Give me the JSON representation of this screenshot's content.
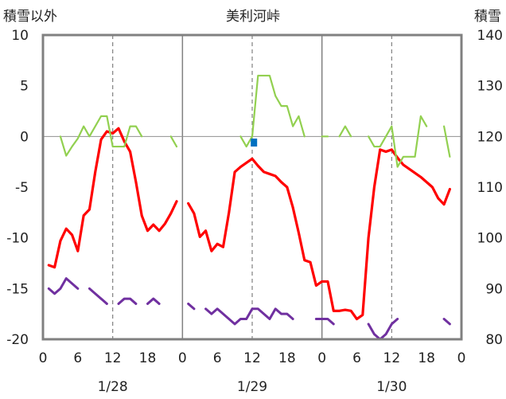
{
  "chart_data": {
    "type": "line",
    "title": "美利河峠",
    "left_axis_label": "積雪以外",
    "right_axis_label": "積雪",
    "left_ylim": [
      -20,
      10
    ],
    "left_yticks": [
      "10",
      "5",
      "0",
      "-5",
      "-10",
      "-15",
      "-20"
    ],
    "right_ylim": [
      80,
      140
    ],
    "right_yticks": [
      "140",
      "130",
      "120",
      "110",
      "100",
      "90",
      "80"
    ],
    "xlim_hours": [
      0,
      72
    ],
    "x_tick_labels": [
      "0",
      "6",
      "12",
      "18",
      "0",
      "6",
      "12",
      "18",
      "0",
      "6",
      "12",
      "18",
      "0"
    ],
    "date_labels": [
      "1/28",
      "1/29",
      "1/30"
    ],
    "grid": "vertical dashed at 12h; solid separators at day boundaries",
    "colors": {
      "red": "#ff0000",
      "green": "#92d050",
      "purple": "#7030a0",
      "blue": "#0070c0",
      "frame": "#808080"
    },
    "series": [
      {
        "axis": "left",
        "color": "#ff0000",
        "points": [
          [
            1,
            -12.7
          ],
          [
            2,
            -12.9
          ],
          [
            3,
            -10.3
          ],
          [
            4,
            -9.1
          ],
          [
            5,
            -9.7
          ],
          [
            6,
            -11.3
          ],
          [
            7,
            -7.8
          ],
          [
            8,
            -7.2
          ],
          [
            9,
            -3.5
          ],
          [
            10,
            -0.3
          ],
          [
            11,
            0.5
          ],
          [
            12,
            0.3
          ],
          [
            13,
            0.8
          ],
          [
            14,
            -0.5
          ],
          [
            15,
            -1.5
          ],
          [
            16,
            -4.5
          ],
          [
            17,
            -7.8
          ],
          [
            18,
            -9.3
          ],
          [
            19,
            -8.7
          ],
          [
            20,
            -9.3
          ],
          [
            21,
            -8.6
          ],
          [
            22,
            -7.6
          ],
          [
            23,
            -6.4
          ],
          [
            25,
            -6.6
          ],
          [
            26,
            -7.6
          ],
          [
            27,
            -9.9
          ],
          [
            28,
            -9.3
          ],
          [
            29,
            -11.3
          ],
          [
            30,
            -10.6
          ],
          [
            31,
            -10.9
          ],
          [
            32,
            -7.5
          ],
          [
            33,
            -3.5
          ],
          [
            34,
            -3.0
          ],
          [
            35,
            -2.6
          ],
          [
            36,
            -2.2
          ],
          [
            37,
            -2.9
          ],
          [
            38,
            -3.5
          ],
          [
            39,
            -3.7
          ],
          [
            40,
            -3.9
          ],
          [
            41,
            -4.5
          ],
          [
            42,
            -5.0
          ],
          [
            43,
            -7.0
          ],
          [
            44,
            -9.5
          ],
          [
            45,
            -12.2
          ],
          [
            46,
            -12.4
          ],
          [
            47,
            -14.7
          ],
          [
            48,
            -14.3
          ],
          [
            49,
            -14.3
          ],
          [
            50,
            -17.2
          ],
          [
            51,
            -17.2
          ],
          [
            52,
            -17.1
          ],
          [
            53,
            -17.2
          ],
          [
            54,
            -18.0
          ],
          [
            55,
            -17.6
          ],
          [
            56,
            -10.0
          ],
          [
            57,
            -5.0
          ],
          [
            58,
            -1.3
          ],
          [
            59,
            -1.5
          ],
          [
            60,
            -1.3
          ],
          [
            61,
            -2.1
          ],
          [
            62,
            -2.8
          ],
          [
            63,
            -3.2
          ],
          [
            64,
            -3.6
          ],
          [
            65,
            -4.0
          ],
          [
            66,
            -4.5
          ],
          [
            67,
            -5.0
          ],
          [
            68,
            -6.1
          ],
          [
            69,
            -6.7
          ],
          [
            70,
            -5.2
          ]
        ]
      },
      {
        "axis": "left",
        "color": "#92d050",
        "points": [
          [
            1,
            0
          ],
          [
            3,
            0
          ],
          [
            4,
            -1.9
          ],
          [
            5,
            -1
          ],
          [
            6,
            -0.2
          ],
          [
            7,
            1
          ],
          [
            8,
            0
          ],
          [
            9,
            1
          ],
          [
            10,
            2
          ],
          [
            11,
            2
          ],
          [
            12,
            -1
          ],
          [
            13,
            -1
          ],
          [
            14,
            -1
          ],
          [
            15,
            1
          ],
          [
            16,
            1
          ],
          [
            17,
            0
          ],
          [
            22,
            0
          ],
          [
            23,
            -1
          ],
          [
            25,
            0
          ],
          [
            34,
            0
          ],
          [
            35,
            -1
          ],
          [
            36,
            0
          ],
          [
            37,
            6
          ],
          [
            38,
            6
          ],
          [
            39,
            6
          ],
          [
            40,
            4
          ],
          [
            41,
            3
          ],
          [
            42,
            3
          ],
          [
            43,
            1
          ],
          [
            44,
            2
          ],
          [
            45,
            0
          ],
          [
            48,
            0
          ],
          [
            49,
            0
          ],
          [
            51,
            0
          ],
          [
            52,
            1
          ],
          [
            53,
            0
          ],
          [
            56,
            0
          ],
          [
            57,
            -1
          ],
          [
            58,
            -1
          ],
          [
            59,
            0
          ],
          [
            60,
            1
          ],
          [
            61,
            -3
          ],
          [
            62,
            -2
          ],
          [
            63,
            -2
          ],
          [
            64,
            -2
          ],
          [
            65,
            2
          ],
          [
            66,
            1
          ],
          [
            69,
            1
          ],
          [
            70,
            -2
          ]
        ]
      },
      {
        "axis": "left",
        "color": "#7030a0",
        "points": [
          [
            1,
            -15
          ],
          [
            2,
            -15.5
          ],
          [
            3,
            -15
          ],
          [
            4,
            -14
          ],
          [
            5,
            -14.5
          ],
          [
            6,
            -15
          ],
          [
            8,
            -15
          ],
          [
            9,
            -15.5
          ],
          [
            10,
            -16
          ],
          [
            11,
            -16.5
          ],
          [
            13,
            -16.5
          ],
          [
            14,
            -16
          ],
          [
            15,
            -16
          ],
          [
            16,
            -16.5
          ],
          [
            18,
            -16.5
          ],
          [
            19,
            -16
          ],
          [
            20,
            -16.5
          ],
          [
            23,
            -16.5
          ],
          [
            25,
            -16.5
          ],
          [
            26,
            -17
          ],
          [
            28,
            -17
          ],
          [
            29,
            -17.5
          ],
          [
            30,
            -17
          ],
          [
            31,
            -17.5
          ],
          [
            32,
            -18
          ],
          [
            33,
            -18.5
          ],
          [
            34,
            -18
          ],
          [
            35,
            -18
          ],
          [
            36,
            -17
          ],
          [
            37,
            -17
          ],
          [
            38,
            -17.5
          ],
          [
            39,
            -18
          ],
          [
            40,
            -17
          ],
          [
            41,
            -17.5
          ],
          [
            42,
            -17.5
          ],
          [
            43,
            -18
          ],
          [
            47,
            -18
          ],
          [
            48,
            -18
          ],
          [
            49,
            -18
          ],
          [
            50,
            -18.5
          ],
          [
            56,
            -18.5
          ],
          [
            57,
            -19.5
          ],
          [
            58,
            -20
          ],
          [
            59,
            -19.5
          ],
          [
            60,
            -18.5
          ],
          [
            61,
            -18
          ],
          [
            69,
            -18
          ],
          [
            70,
            -18.5
          ]
        ]
      },
      {
        "axis": "left",
        "color": "#0070c0",
        "style": "marker",
        "points": [
          [
            36.3,
            -0.6
          ]
        ]
      }
    ]
  }
}
